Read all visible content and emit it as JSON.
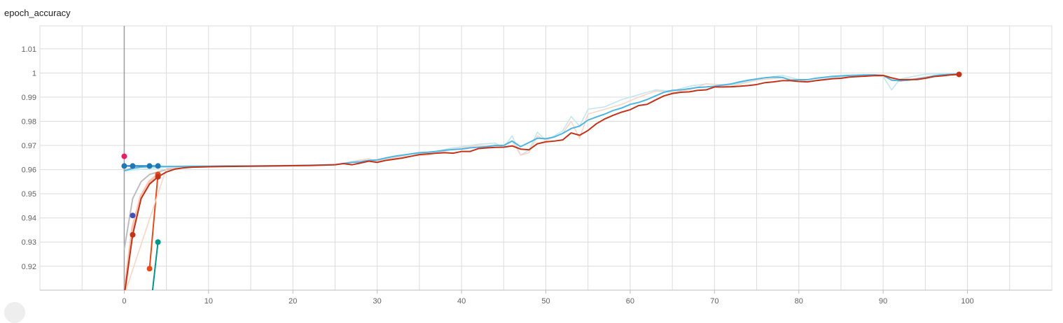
{
  "title": "epoch_accuracy",
  "chart_data": {
    "type": "line",
    "title": "epoch_accuracy",
    "xlabel": "",
    "ylabel": "",
    "xlim": [
      -10,
      110
    ],
    "ylim": [
      0.9101,
      1.0195
    ],
    "grid": true,
    "legend": "none",
    "x_ticks": [
      0,
      10,
      20,
      30,
      40,
      50,
      60,
      70,
      80,
      90,
      100
    ],
    "y_ticks": [
      0.92,
      0.93,
      0.94,
      0.95,
      0.96,
      0.97,
      0.98,
      0.99,
      1,
      1.01
    ],
    "y_tick_labels": [
      "0.92",
      "0.93",
      "0.94",
      "0.95",
      "0.96",
      "0.97",
      "0.98",
      "0.99",
      "1",
      "1.01"
    ],
    "cursor_x": 0,
    "series": [
      {
        "color": "#bdbdbd",
        "width": 2,
        "opacity": 1,
        "marker": false,
        "x": [
          0,
          1,
          2,
          3,
          4,
          5,
          6,
          8,
          10
        ],
        "y": [
          0.927,
          0.948,
          0.955,
          0.958,
          0.959,
          0.96,
          0.9605,
          0.961,
          0.9612
        ]
      },
      {
        "color": "#f4a582",
        "width": 4,
        "opacity": 0.65,
        "marker": false,
        "x": [
          0,
          1,
          2,
          3,
          4
        ],
        "y": [
          0.908,
          0.936,
          0.949,
          0.955,
          0.958
        ]
      },
      {
        "color": "#f4a582",
        "width": 2,
        "opacity": 0.35,
        "marker": false,
        "x": [
          0,
          1,
          2,
          3,
          4
        ],
        "y": [
          0.96,
          0.961,
          0.9612,
          0.9612,
          0.9612
        ]
      },
      {
        "color": "#e64a19",
        "width": 2,
        "opacity": 1,
        "marker": true,
        "x": [
          3,
          4
        ],
        "y": [
          0.919,
          0.958
        ]
      },
      {
        "color": "#1f77b4",
        "width": 2,
        "opacity": 1,
        "marker": true,
        "x": [
          0,
          1,
          3,
          4
        ],
        "y": [
          0.9615,
          0.9615,
          0.9615,
          0.9615
        ]
      },
      {
        "color": "#3f51b5",
        "width": 2,
        "opacity": 1,
        "marker": true,
        "x": [
          1
        ],
        "y": [
          0.941
        ]
      },
      {
        "color": "#009688",
        "width": 2,
        "opacity": 1,
        "marker": true,
        "x": [
          3.2,
          4
        ],
        "y": [
          0.905,
          0.93
        ]
      },
      {
        "color": "#e91e63",
        "width": 2,
        "opacity": 1,
        "marker": true,
        "x": [
          0
        ],
        "y": [
          0.9655
        ]
      },
      {
        "color": "#bfe6f3",
        "width": 1.5,
        "opacity": 1,
        "marker": false,
        "x": [
          0,
          5,
          10,
          15,
          20,
          25,
          28,
          30,
          33,
          36,
          39,
          42,
          44,
          45,
          46,
          47,
          48,
          49,
          50,
          52,
          53,
          54,
          55,
          57,
          59,
          61,
          63,
          65,
          67,
          69,
          72,
          75,
          78,
          81,
          85,
          88,
          90,
          91,
          92,
          95,
          99
        ],
        "y": [
          0.9595,
          0.961,
          0.9613,
          0.9615,
          0.9617,
          0.962,
          0.964,
          0.9635,
          0.966,
          0.967,
          0.969,
          0.9705,
          0.971,
          0.969,
          0.974,
          0.966,
          0.968,
          0.9755,
          0.972,
          0.976,
          0.982,
          0.978,
          0.985,
          0.986,
          0.989,
          0.991,
          0.993,
          0.9925,
          0.9945,
          0.9955,
          0.995,
          0.9975,
          0.999,
          0.9965,
          0.9985,
          0.999,
          0.9985,
          0.993,
          0.9975,
          0.9995,
          0.9998
        ]
      },
      {
        "color": "#fbd3c1",
        "width": 1.5,
        "opacity": 1,
        "marker": false,
        "x": [
          0,
          5,
          10,
          15,
          20,
          25,
          29,
          30,
          33,
          36,
          39,
          42,
          45,
          46,
          47,
          48,
          49,
          50,
          52,
          53,
          54,
          55,
          57,
          59,
          61,
          63,
          65,
          67,
          69,
          72,
          75,
          78,
          81,
          85,
          88,
          90,
          92,
          95,
          99
        ],
        "y": [
          0.908,
          0.9605,
          0.9612,
          0.9614,
          0.9616,
          0.962,
          0.9645,
          0.9635,
          0.9655,
          0.966,
          0.9685,
          0.97,
          0.97,
          0.972,
          0.966,
          0.967,
          0.974,
          0.972,
          0.975,
          0.98,
          0.973,
          0.983,
          0.985,
          0.987,
          0.99,
          0.9925,
          0.992,
          0.993,
          0.9955,
          0.9945,
          0.997,
          0.998,
          0.9965,
          0.998,
          0.999,
          0.9985,
          0.9965,
          0.9985,
          0.9995
        ]
      },
      {
        "color": "#4db6e2",
        "width": 2,
        "opacity": 1,
        "marker": false,
        "x": [
          0,
          1,
          2,
          3,
          4,
          5,
          6,
          8,
          10,
          12,
          15,
          18,
          20,
          22,
          25,
          27,
          28,
          29,
          30,
          31,
          32,
          33,
          34,
          35,
          36,
          37,
          38,
          39,
          40,
          41,
          42,
          43,
          44,
          45,
          46,
          47,
          48,
          49,
          50,
          51,
          52,
          53,
          54,
          55,
          56,
          57,
          58,
          59,
          60,
          61,
          62,
          63,
          64,
          65,
          66,
          67,
          68,
          69,
          70,
          71,
          72,
          73,
          74,
          75,
          76,
          77,
          78,
          79,
          80,
          81,
          82,
          83,
          84,
          85,
          86,
          87,
          88,
          89,
          90,
          91,
          92,
          93,
          94,
          95,
          96,
          97,
          98,
          99
        ],
        "y": [
          0.9595,
          0.9605,
          0.961,
          0.9612,
          0.9613,
          0.9613,
          0.9613,
          0.9614,
          0.9614,
          0.9615,
          0.9615,
          0.9616,
          0.9617,
          0.9618,
          0.962,
          0.963,
          0.9632,
          0.9638,
          0.964,
          0.9648,
          0.9655,
          0.966,
          0.9665,
          0.967,
          0.9672,
          0.9675,
          0.968,
          0.9683,
          0.9685,
          0.969,
          0.9693,
          0.9695,
          0.97,
          0.97,
          0.9718,
          0.9695,
          0.9712,
          0.973,
          0.9728,
          0.9735,
          0.975,
          0.977,
          0.978,
          0.9805,
          0.9818,
          0.983,
          0.9845,
          0.9855,
          0.987,
          0.9878,
          0.989,
          0.9905,
          0.992,
          0.9928,
          0.993,
          0.9935,
          0.994,
          0.9942,
          0.9945,
          0.995,
          0.9955,
          0.9963,
          0.997,
          0.9975,
          0.998,
          0.9983,
          0.9982,
          0.997,
          0.9972,
          0.9972,
          0.9978,
          0.9982,
          0.9986,
          0.9988,
          0.999,
          0.9991,
          0.9992,
          0.9992,
          0.999,
          0.997,
          0.9968,
          0.997,
          0.9975,
          0.998,
          0.9988,
          0.9992,
          0.9994,
          0.9996
        ]
      },
      {
        "color": "#c1331a",
        "width": 2,
        "opacity": 1,
        "marker": true,
        "marker_points": [
          1,
          4,
          99
        ],
        "x": [
          0,
          1,
          2,
          3,
          4,
          5,
          6,
          7,
          8,
          10,
          12,
          15,
          18,
          20,
          22,
          25,
          26,
          27,
          28,
          29,
          30,
          31,
          32,
          33,
          34,
          35,
          36,
          37,
          38,
          39,
          40,
          41,
          42,
          43,
          44,
          45,
          46,
          47,
          48,
          49,
          50,
          51,
          52,
          53,
          54,
          55,
          56,
          57,
          58,
          59,
          60,
          61,
          62,
          63,
          64,
          65,
          66,
          67,
          68,
          69,
          70,
          71,
          72,
          73,
          74,
          75,
          76,
          77,
          78,
          79,
          80,
          81,
          82,
          83,
          84,
          85,
          86,
          87,
          88,
          89,
          90,
          91,
          92,
          93,
          94,
          95,
          96,
          97,
          98,
          99
        ],
        "y": [
          0.908,
          0.933,
          0.948,
          0.954,
          0.957,
          0.959,
          0.9602,
          0.9607,
          0.961,
          0.9612,
          0.9613,
          0.9614,
          0.9615,
          0.9616,
          0.9617,
          0.962,
          0.9625,
          0.962,
          0.9627,
          0.9635,
          0.963,
          0.9638,
          0.9643,
          0.9648,
          0.9655,
          0.9662,
          0.9665,
          0.9668,
          0.967,
          0.9668,
          0.9675,
          0.9675,
          0.9687,
          0.969,
          0.9692,
          0.9693,
          0.9698,
          0.9685,
          0.9682,
          0.9707,
          0.9715,
          0.9718,
          0.9723,
          0.9752,
          0.9742,
          0.9762,
          0.979,
          0.981,
          0.9825,
          0.9838,
          0.9848,
          0.9865,
          0.987,
          0.9888,
          0.9905,
          0.9915,
          0.992,
          0.9922,
          0.9928,
          0.993,
          0.9942,
          0.9942,
          0.9943,
          0.9945,
          0.9948,
          0.9952,
          0.996,
          0.9963,
          0.9968,
          0.9968,
          0.9965,
          0.9963,
          0.9968,
          0.9972,
          0.9976,
          0.9978,
          0.9983,
          0.9985,
          0.9987,
          0.9989,
          0.999,
          0.998,
          0.9972,
          0.9973,
          0.9973,
          0.9978,
          0.9985,
          0.9988,
          0.9992,
          0.9994
        ]
      }
    ]
  }
}
